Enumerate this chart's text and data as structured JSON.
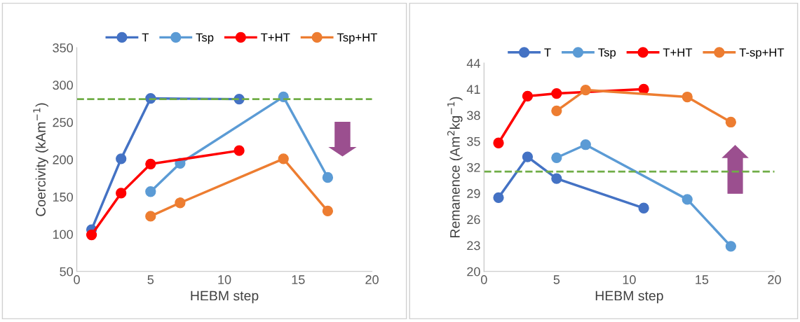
{
  "chart_data": [
    {
      "type": "line",
      "xlabel": "HEBM step",
      "ylabel": "Coercivity (kAm$^{−1}$)",
      "xlim": [
        0,
        20
      ],
      "xticks": [
        0,
        5,
        10,
        15,
        20
      ],
      "ylim": [
        50,
        350
      ],
      "yticks": [
        50,
        100,
        150,
        200,
        250,
        300,
        350
      ],
      "grid": false,
      "legend": "top",
      "marker": "circle",
      "line_style": "solid",
      "series": [
        {
          "name": "T",
          "color": "#4472c4",
          "x": [
            1,
            3,
            5,
            11
          ],
          "values": [
            106,
            201,
            282,
            281
          ]
        },
        {
          "name": "Tsp",
          "color": "#5b9bd5",
          "x": [
            5,
            7,
            14,
            17
          ],
          "values": [
            157,
            195,
            284,
            176
          ]
        },
        {
          "name": "T+HT",
          "color": "#ff0000",
          "x": [
            1,
            3,
            5,
            11
          ],
          "values": [
            99,
            155,
            194,
            212
          ]
        },
        {
          "name": "Tsp+HT",
          "color": "#ed7d31",
          "x": [
            5,
            7,
            14,
            17
          ],
          "values": [
            124,
            142,
            201,
            131
          ]
        }
      ],
      "ref_lines": [
        {
          "axis": "y",
          "value": 281,
          "color": "#70ad47",
          "line_style": "dashed"
        }
      ]
    },
    {
      "type": "line",
      "xlabel": "HEBM step",
      "ylabel": "Remanence (Am$^{2}$kg$^{−1}$)",
      "xlim": [
        0,
        20
      ],
      "xticks": [
        0,
        5,
        10,
        15,
        20
      ],
      "ylim": [
        20,
        44
      ],
      "yticks": [
        20,
        23,
        26,
        29,
        32,
        35,
        38,
        41,
        44
      ],
      "grid": false,
      "legend": "top",
      "marker": "circle",
      "line_style": "solid",
      "series": [
        {
          "name": "T",
          "color": "#4472c4",
          "x": [
            1,
            3,
            5,
            11
          ],
          "values": [
            28.5,
            33.2,
            30.7,
            27.3
          ]
        },
        {
          "name": "Tsp",
          "color": "#5b9bd5",
          "x": [
            5,
            7,
            14,
            17
          ],
          "values": [
            33.1,
            34.6,
            28.3,
            22.9
          ]
        },
        {
          "name": "T+HT",
          "color": "#ff0000",
          "x": [
            1,
            3,
            5,
            11
          ],
          "values": [
            34.8,
            40.2,
            40.5,
            41.0
          ]
        },
        {
          "name": "T-sp+HT",
          "color": "#ed7d31",
          "x": [
            5,
            7,
            14,
            17
          ],
          "values": [
            38.5,
            40.9,
            40.1,
            37.2
          ]
        }
      ],
      "ref_lines": [
        {
          "axis": "y",
          "value": 31.5,
          "color": "#70ad47",
          "line_style": "dashed"
        }
      ]
    }
  ]
}
